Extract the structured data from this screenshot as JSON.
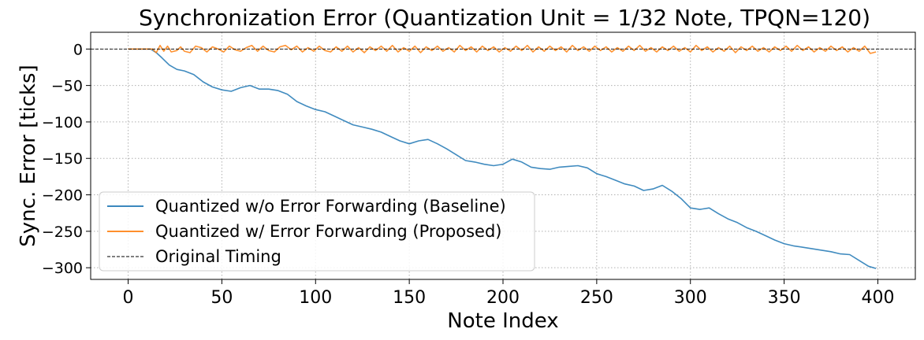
{
  "chart_data": {
    "type": "line",
    "title": "Synchronization Error (Quantization Unit = 1/32 Note, TPQN=120)",
    "xlabel": "Note Index",
    "ylabel": "Sync. Error [ticks]",
    "xlim": [
      -20,
      420
    ],
    "ylim": [
      -316,
      23
    ],
    "xticks": [
      0,
      50,
      100,
      150,
      200,
      250,
      300,
      350,
      400
    ],
    "yticks": [
      0,
      -50,
      -100,
      -150,
      -200,
      -250,
      -300
    ],
    "grid": true,
    "legend_position": "lower-left",
    "series": [
      {
        "name": "Quantized w/o Error Forwarding (Baseline)",
        "color": "#1f77b4",
        "style": "solid",
        "points": [
          [
            0,
            0
          ],
          [
            10,
            0
          ],
          [
            12,
            0
          ],
          [
            15,
            -5
          ],
          [
            18,
            -12
          ],
          [
            22,
            -22
          ],
          [
            26,
            -28
          ],
          [
            30,
            -30
          ],
          [
            35,
            -35
          ],
          [
            40,
            -45
          ],
          [
            45,
            -52
          ],
          [
            50,
            -56
          ],
          [
            55,
            -58
          ],
          [
            60,
            -53
          ],
          [
            65,
            -50
          ],
          [
            70,
            -55
          ],
          [
            75,
            -55
          ],
          [
            80,
            -57
          ],
          [
            85,
            -62
          ],
          [
            90,
            -72
          ],
          [
            95,
            -78
          ],
          [
            100,
            -83
          ],
          [
            105,
            -86
          ],
          [
            110,
            -92
          ],
          [
            115,
            -98
          ],
          [
            120,
            -104
          ],
          [
            125,
            -107
          ],
          [
            130,
            -110
          ],
          [
            135,
            -114
          ],
          [
            140,
            -120
          ],
          [
            145,
            -126
          ],
          [
            150,
            -130
          ],
          [
            155,
            -126
          ],
          [
            160,
            -124
          ],
          [
            165,
            -130
          ],
          [
            170,
            -137
          ],
          [
            175,
            -145
          ],
          [
            180,
            -153
          ],
          [
            185,
            -155
          ],
          [
            190,
            -158
          ],
          [
            195,
            -160
          ],
          [
            200,
            -158
          ],
          [
            205,
            -151
          ],
          [
            210,
            -155
          ],
          [
            215,
            -162
          ],
          [
            220,
            -164
          ],
          [
            225,
            -165
          ],
          [
            230,
            -162
          ],
          [
            235,
            -161
          ],
          [
            240,
            -160
          ],
          [
            245,
            -163
          ],
          [
            250,
            -171
          ],
          [
            255,
            -175
          ],
          [
            260,
            -180
          ],
          [
            265,
            -185
          ],
          [
            270,
            -188
          ],
          [
            275,
            -194
          ],
          [
            280,
            -192
          ],
          [
            285,
            -187
          ],
          [
            290,
            -195
          ],
          [
            295,
            -205
          ],
          [
            300,
            -218
          ],
          [
            305,
            -220
          ],
          [
            310,
            -218
          ],
          [
            315,
            -226
          ],
          [
            320,
            -233
          ],
          [
            325,
            -238
          ],
          [
            330,
            -245
          ],
          [
            335,
            -250
          ],
          [
            340,
            -256
          ],
          [
            345,
            -262
          ],
          [
            350,
            -267
          ],
          [
            355,
            -270
          ],
          [
            360,
            -272
          ],
          [
            365,
            -274
          ],
          [
            370,
            -276
          ],
          [
            375,
            -278
          ],
          [
            380,
            -281
          ],
          [
            385,
            -282
          ],
          [
            390,
            -290
          ],
          [
            395,
            -298
          ],
          [
            399,
            -301
          ]
        ]
      },
      {
        "name": "Quantized w/ Error Forwarding (Proposed)",
        "color": "#ff7f0e",
        "style": "solid",
        "points": [
          [
            0,
            0
          ],
          [
            10,
            0
          ],
          [
            13,
            0
          ],
          [
            15,
            -5
          ],
          [
            17,
            5
          ],
          [
            19,
            -3
          ],
          [
            21,
            4
          ],
          [
            23,
            -4
          ],
          [
            26,
            -2
          ],
          [
            28,
            3
          ],
          [
            30,
            -3
          ],
          [
            33,
            -5
          ],
          [
            36,
            4
          ],
          [
            39,
            2
          ],
          [
            42,
            -4
          ],
          [
            45,
            3
          ],
          [
            48,
            0
          ],
          [
            51,
            -4
          ],
          [
            54,
            4
          ],
          [
            57,
            -1
          ],
          [
            60,
            -3
          ],
          [
            63,
            2
          ],
          [
            66,
            5
          ],
          [
            69,
            -3
          ],
          [
            72,
            4
          ],
          [
            75,
            -2
          ],
          [
            78,
            -4
          ],
          [
            81,
            3
          ],
          [
            84,
            5
          ],
          [
            87,
            -1
          ],
          [
            90,
            4
          ],
          [
            93,
            -4
          ],
          [
            96,
            2
          ],
          [
            99,
            -3
          ],
          [
            102,
            4
          ],
          [
            105,
            -2
          ],
          [
            108,
            -4
          ],
          [
            111,
            3
          ],
          [
            114,
            -3
          ],
          [
            117,
            4
          ],
          [
            120,
            -4
          ],
          [
            123,
            2
          ],
          [
            126,
            -5
          ],
          [
            129,
            3
          ],
          [
            132,
            -2
          ],
          [
            135,
            4
          ],
          [
            138,
            -3
          ],
          [
            141,
            5
          ],
          [
            144,
            -4
          ],
          [
            147,
            2
          ],
          [
            150,
            -3
          ],
          [
            153,
            4
          ],
          [
            156,
            -5
          ],
          [
            159,
            3
          ],
          [
            162,
            -2
          ],
          [
            165,
            4
          ],
          [
            168,
            -3
          ],
          [
            171,
            2
          ],
          [
            174,
            -4
          ],
          [
            177,
            5
          ],
          [
            180,
            -2
          ],
          [
            183,
            3
          ],
          [
            186,
            -4
          ],
          [
            189,
            4
          ],
          [
            192,
            -2
          ],
          [
            195,
            3
          ],
          [
            198,
            -4
          ],
          [
            201,
            2
          ],
          [
            204,
            -3
          ],
          [
            207,
            4
          ],
          [
            210,
            -2
          ],
          [
            213,
            5
          ],
          [
            216,
            -4
          ],
          [
            219,
            3
          ],
          [
            222,
            -3
          ],
          [
            225,
            4
          ],
          [
            228,
            -2
          ],
          [
            231,
            3
          ],
          [
            234,
            -4
          ],
          [
            237,
            5
          ],
          [
            240,
            -2
          ],
          [
            243,
            3
          ],
          [
            246,
            -3
          ],
          [
            249,
            4
          ],
          [
            252,
            -2
          ],
          [
            255,
            3
          ],
          [
            258,
            -4
          ],
          [
            261,
            2
          ],
          [
            264,
            -3
          ],
          [
            267,
            4
          ],
          [
            270,
            -2
          ],
          [
            273,
            5
          ],
          [
            276,
            -3
          ],
          [
            279,
            2
          ],
          [
            282,
            -4
          ],
          [
            285,
            3
          ],
          [
            288,
            -2
          ],
          [
            291,
            4
          ],
          [
            294,
            -3
          ],
          [
            297,
            2
          ],
          [
            300,
            -4
          ],
          [
            303,
            5
          ],
          [
            306,
            -2
          ],
          [
            309,
            3
          ],
          [
            312,
            -4
          ],
          [
            315,
            2
          ],
          [
            318,
            -3
          ],
          [
            321,
            4
          ],
          [
            324,
            -5
          ],
          [
            327,
            3
          ],
          [
            330,
            -2
          ],
          [
            333,
            4
          ],
          [
            336,
            -3
          ],
          [
            339,
            2
          ],
          [
            342,
            -4
          ],
          [
            345,
            3
          ],
          [
            348,
            -2
          ],
          [
            351,
            4
          ],
          [
            354,
            -3
          ],
          [
            357,
            5
          ],
          [
            360,
            -2
          ],
          [
            363,
            3
          ],
          [
            366,
            -4
          ],
          [
            369,
            2
          ],
          [
            372,
            -3
          ],
          [
            375,
            4
          ],
          [
            378,
            -2
          ],
          [
            381,
            3
          ],
          [
            384,
            -4
          ],
          [
            387,
            2
          ],
          [
            390,
            -3
          ],
          [
            393,
            4
          ],
          [
            396,
            -6
          ],
          [
            399,
            -4
          ]
        ]
      },
      {
        "name": "Original Timing",
        "color": "#000000",
        "style": "dashed",
        "points": [
          [
            -20,
            0
          ],
          [
            420,
            0
          ]
        ]
      }
    ]
  }
}
